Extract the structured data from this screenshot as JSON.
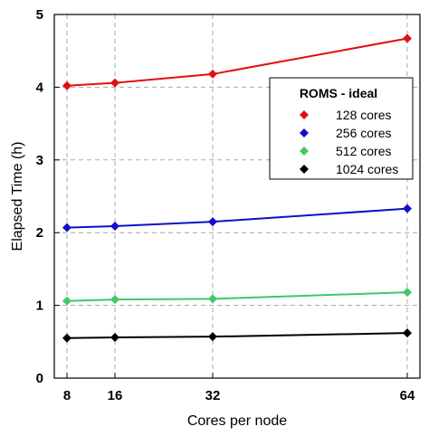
{
  "chart_data": {
    "type": "line",
    "x": [
      8,
      16,
      32,
      64
    ],
    "x_ticks": [
      "8",
      "16",
      "32",
      "64"
    ],
    "y_ticks": [
      "0",
      "1",
      "2",
      "3",
      "4",
      "5"
    ],
    "xlabel": "Cores per node",
    "ylabel": "Elapsed Time (h)",
    "xlim": [
      8,
      64
    ],
    "ylim": [
      0,
      5
    ],
    "grid": true,
    "legend": {
      "title": "ROMS - ideal",
      "placement": "top-right"
    },
    "series": [
      {
        "name": "128 cores",
        "color": "#e01010",
        "values": [
          4.02,
          4.06,
          4.18,
          4.67
        ]
      },
      {
        "name": "256 cores",
        "color": "#1010c8",
        "values": [
          2.07,
          2.09,
          2.15,
          2.33
        ]
      },
      {
        "name": "512 cores",
        "color": "#3ec86a",
        "values": [
          1.06,
          1.08,
          1.09,
          1.18
        ]
      },
      {
        "name": "1024 cores",
        "color": "#000000",
        "values": [
          0.55,
          0.56,
          0.57,
          0.62
        ]
      }
    ]
  }
}
